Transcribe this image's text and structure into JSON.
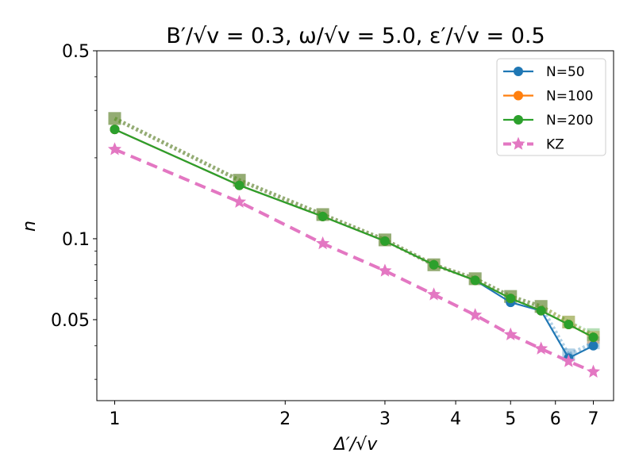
{
  "chart_data": {
    "type": "line",
    "title": "B′/√v = 0.3, ω/√v = 5.0, ε′/√v = 0.5",
    "xlabel": "Δ′/√v",
    "ylabel": "n",
    "xscale": "log",
    "yscale": "log",
    "xlim": [
      0.93,
      7.6
    ],
    "ylim": [
      0.025,
      0.5
    ],
    "xticks": [
      {
        "value": 1,
        "label": "1"
      },
      {
        "value": 2,
        "label": "2"
      },
      {
        "value": 3,
        "label": "3"
      },
      {
        "value": 4,
        "label": "4"
      },
      {
        "value": 5,
        "label": "5"
      },
      {
        "value": 6,
        "label": "6"
      },
      {
        "value": 7,
        "label": "7"
      }
    ],
    "yticks": [
      {
        "value": 0.5,
        "label": "0.5"
      },
      {
        "value": 0.1,
        "label": "0.1"
      },
      {
        "value": 0.05,
        "label": "0.05"
      }
    ],
    "legend_position": "top-right",
    "x": [
      1.0,
      1.66,
      2.33,
      3.0,
      3.66,
      4.33,
      5.0,
      5.66,
      6.33,
      7.0
    ],
    "series": [
      {
        "name": "N=50",
        "color": "#1f77b4",
        "marker": "circle",
        "linestyle": "solid",
        "values": [
          0.255,
          0.158,
          0.121,
          0.098,
          0.08,
          0.07,
          0.058,
          0.054,
          0.036,
          0.04
        ],
        "ghost_values": [
          0.28,
          0.165,
          0.123,
          0.099,
          0.08,
          0.071,
          0.061,
          0.056,
          0.037,
          0.041
        ]
      },
      {
        "name": "N=100",
        "color": "#ff7f0e",
        "marker": "circle",
        "linestyle": "solid",
        "values": [
          0.255,
          0.158,
          0.121,
          0.098,
          0.08,
          0.07,
          0.06,
          0.054,
          0.048,
          0.043
        ],
        "ghost_values": [
          0.28,
          0.165,
          0.123,
          0.099,
          0.08,
          0.071,
          0.061,
          0.056,
          0.049,
          0.043
        ]
      },
      {
        "name": "N=200",
        "color": "#2ca02c",
        "marker": "circle",
        "linestyle": "solid",
        "values": [
          0.255,
          0.158,
          0.121,
          0.098,
          0.08,
          0.07,
          0.06,
          0.054,
          0.048,
          0.043
        ],
        "ghost_values": [
          0.28,
          0.165,
          0.123,
          0.099,
          0.08,
          0.071,
          0.061,
          0.056,
          0.049,
          0.044
        ]
      },
      {
        "name": "KZ",
        "color": "#e377c2",
        "marker": "star",
        "linestyle": "dashed",
        "values": [
          0.215,
          0.137,
          0.096,
          0.076,
          0.062,
          0.052,
          0.044,
          0.039,
          0.035,
          0.032
        ]
      }
    ]
  }
}
